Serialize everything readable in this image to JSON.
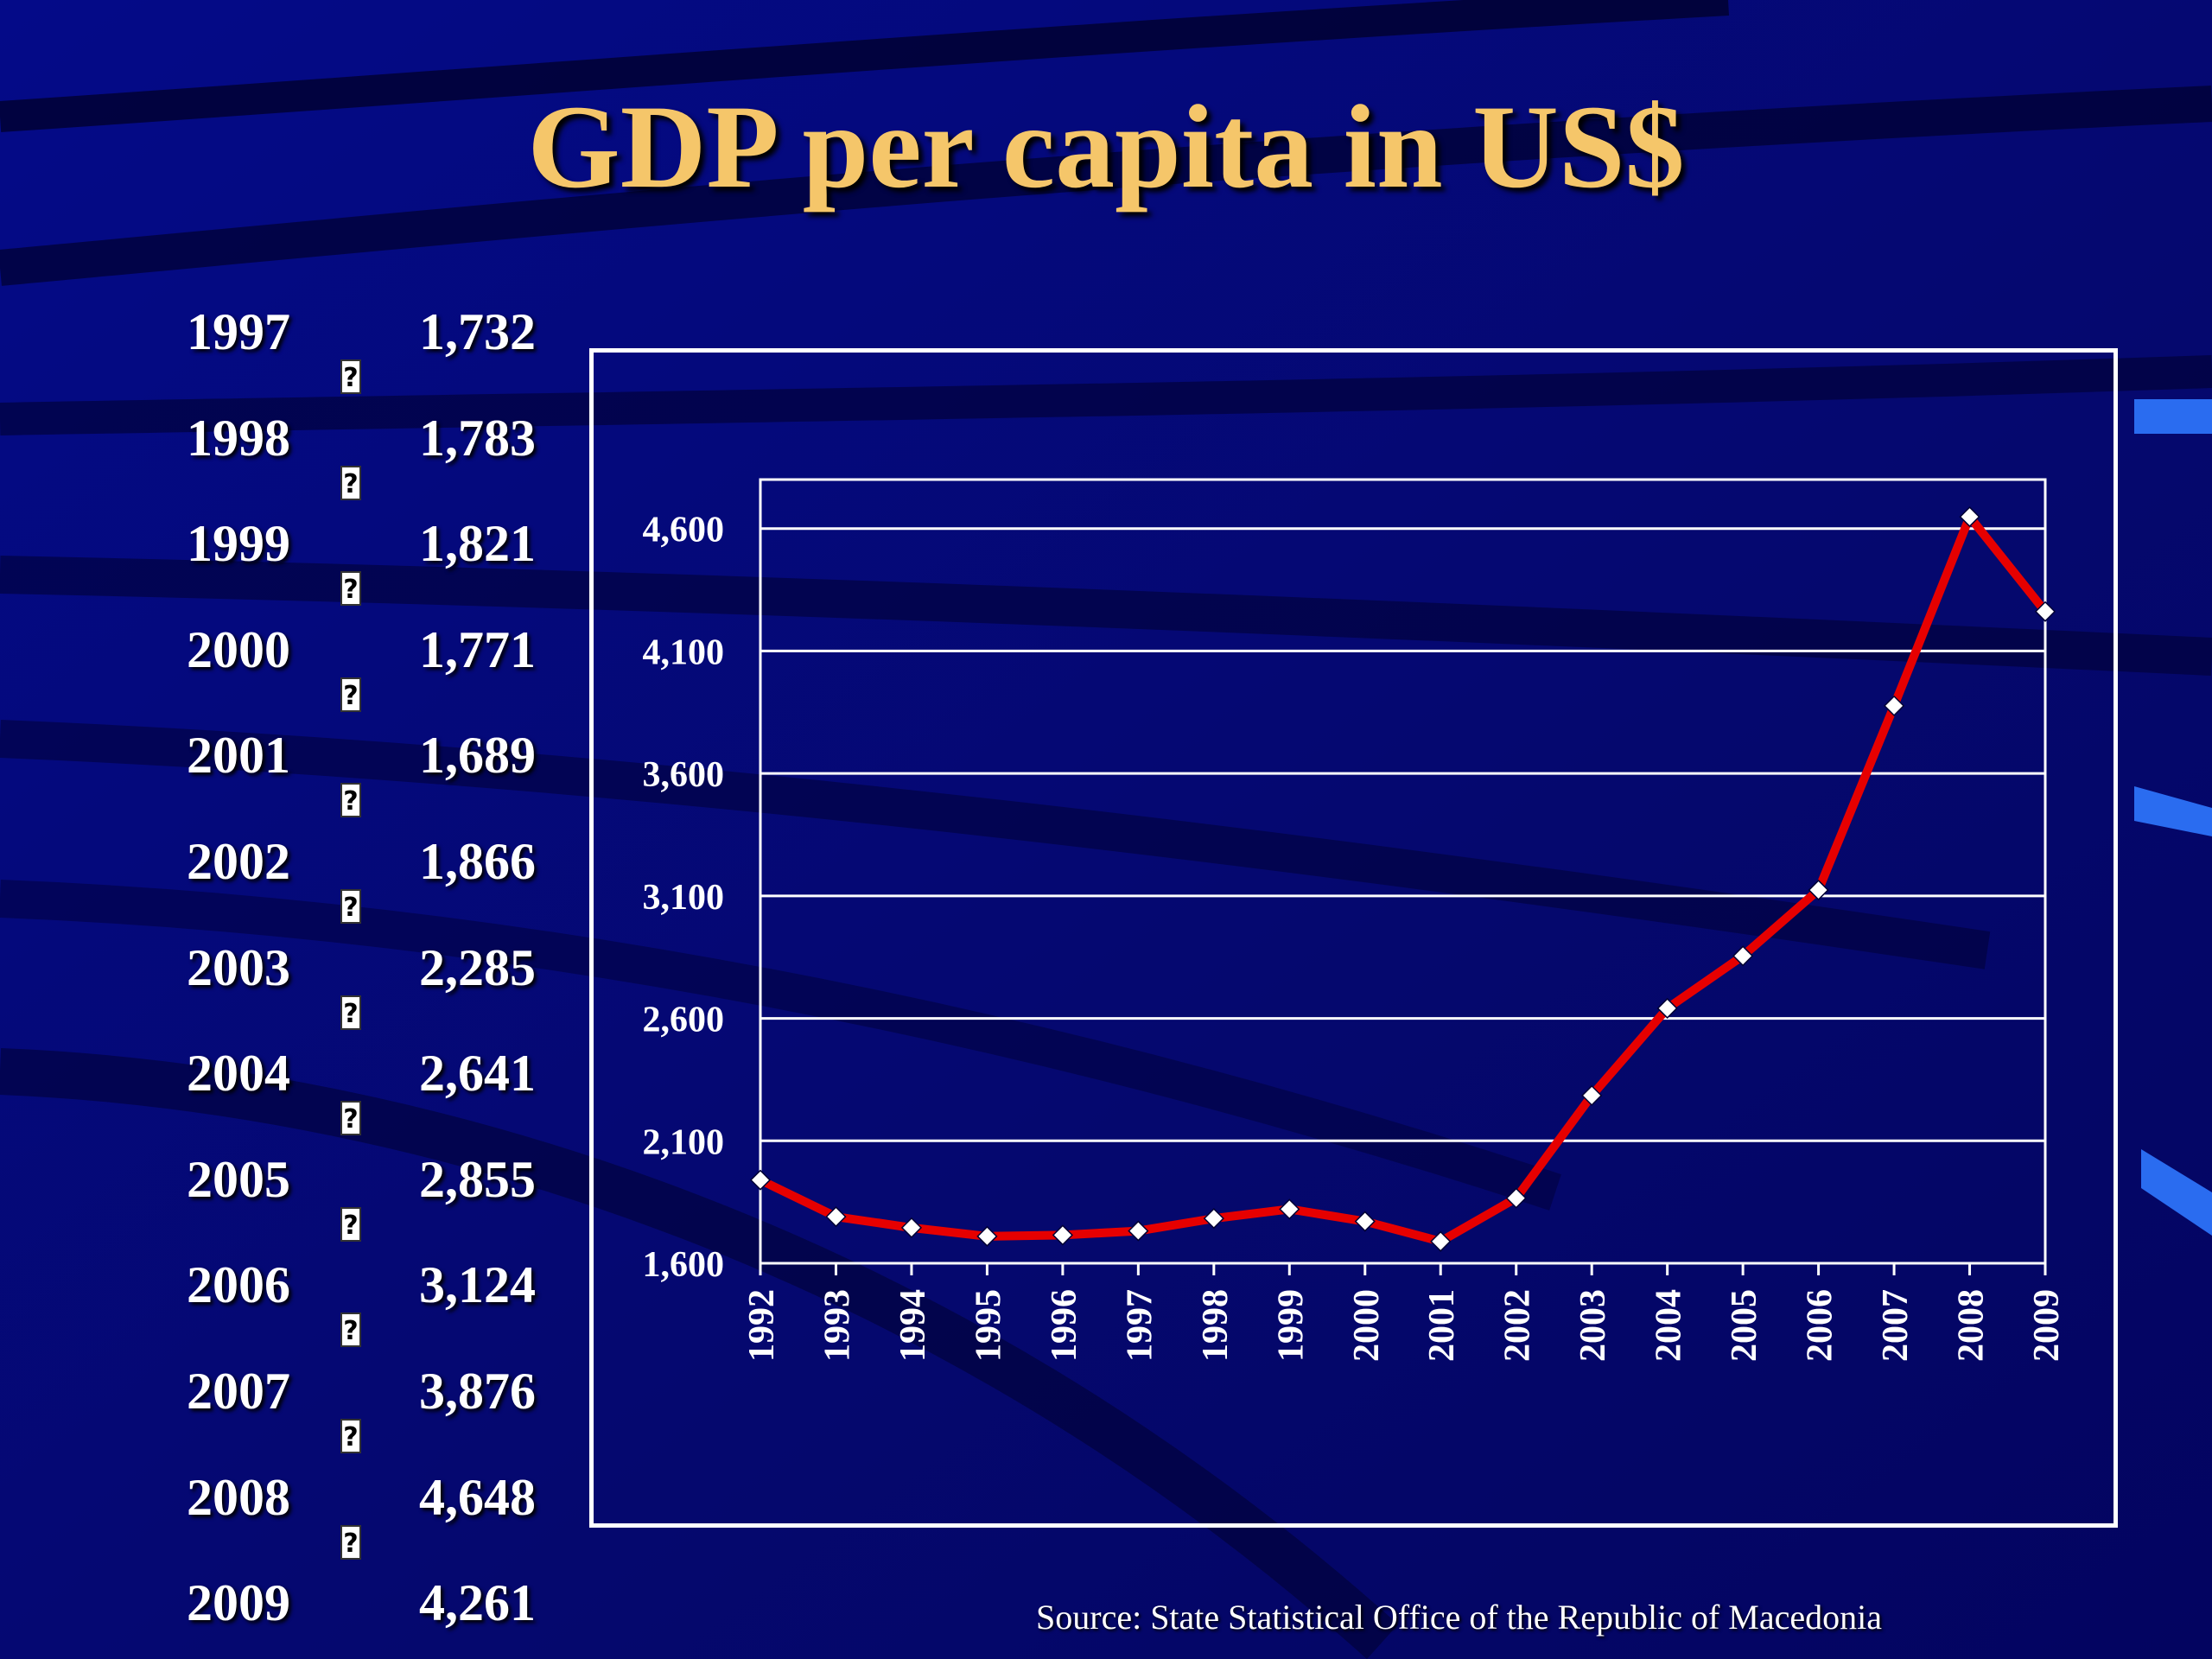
{
  "title": "GDP per capita in US$",
  "table": {
    "rows": [
      {
        "year": "1997",
        "value": "1,732"
      },
      {
        "year": "1998",
        "value": "1,783"
      },
      {
        "year": "1999",
        "value": "1,821"
      },
      {
        "year": "2000",
        "value": "1,771"
      },
      {
        "year": "2001",
        "value": "1,689"
      },
      {
        "year": "2002",
        "value": "1,866"
      },
      {
        "year": "2003",
        "value": "2,285"
      },
      {
        "year": "2004",
        "value": "2,641"
      },
      {
        "year": "2005",
        "value": "2,855"
      },
      {
        "year": "2006",
        "value": "3,124"
      },
      {
        "year": "2007",
        "value": "3,876"
      },
      {
        "year": "2008",
        "value": "4,648"
      },
      {
        "year": "2009",
        "value": "4,261"
      }
    ],
    "separator_glyph": "?"
  },
  "source": "Source: State Statistical Office of the Republic of Macedonia",
  "colors": {
    "background": "#05086e",
    "title": "#f5c66a",
    "line": "#e60000",
    "marker": "#ffffff",
    "grid": "#ffffff"
  },
  "chart_data": {
    "type": "line",
    "title": "",
    "xlabel": "",
    "ylabel": "",
    "x": [
      "1992",
      "1993",
      "1994",
      "1995",
      "1996",
      "1997",
      "1998",
      "1999",
      "2000",
      "2001",
      "2002",
      "2003",
      "2004",
      "2005",
      "2006",
      "2007",
      "2008",
      "2009"
    ],
    "series": [
      {
        "values": [
          1940,
          1790,
          1745,
          1710,
          1715,
          1732,
          1783,
          1821,
          1771,
          1689,
          1866,
          2285,
          2641,
          2855,
          3124,
          3876,
          4648,
          4261
        ]
      }
    ],
    "yticks": [
      "1,600",
      "2,100",
      "2,600",
      "3,100",
      "3,600",
      "4,100",
      "4,600"
    ],
    "ylim": [
      1600,
      4800
    ],
    "grid": true,
    "legend": "none"
  }
}
